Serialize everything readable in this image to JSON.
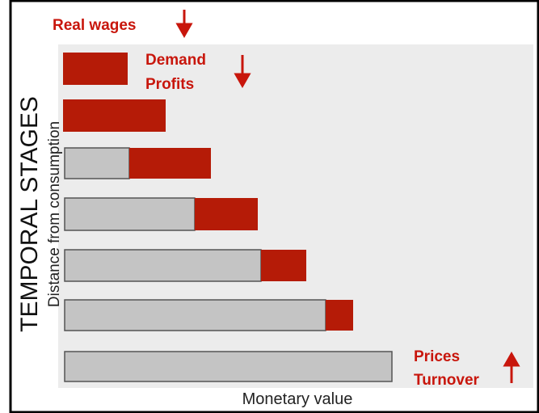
{
  "labels": {
    "real_wages": "Real wages",
    "demand": "Demand",
    "profits": "Profits",
    "prices": "Prices",
    "turnover": "Turnover",
    "vertical_title": "TEMPORAL STAGES",
    "vertical_subtitle": "Distance from consumption",
    "horizontal_label": "Monetary value"
  }
}
